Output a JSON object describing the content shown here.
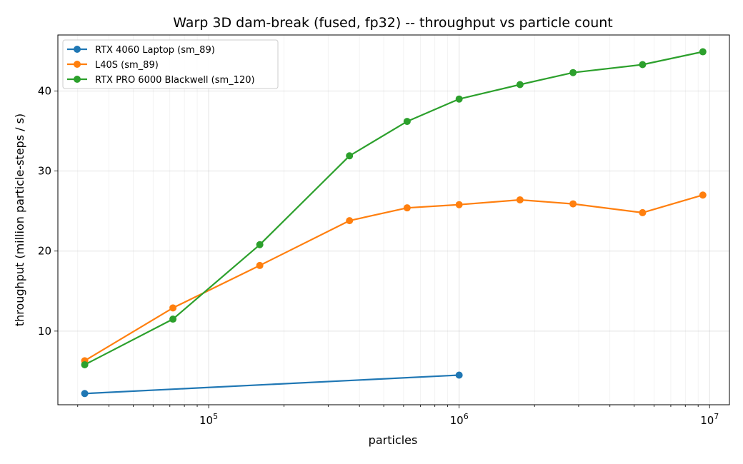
{
  "chart_data": {
    "type": "line",
    "title": "Warp 3D dam-break (fused, fp32) -- throughput vs particle count",
    "xlabel": "particles",
    "ylabel": "throughput (million particle-steps / s)",
    "xscale": "log",
    "xlim": [
      25000,
      12000000
    ],
    "ylim": [
      0.8,
      47.0
    ],
    "grid": true,
    "legend_position": "upper left",
    "x_ticks": [
      {
        "value": 100000,
        "base": "10",
        "exp": "5"
      },
      {
        "value": 1000000,
        "base": "10",
        "exp": "6"
      },
      {
        "value": 10000000,
        "base": "10",
        "exp": "7"
      }
    ],
    "y_ticks": [
      10,
      20,
      30,
      40
    ],
    "series": [
      {
        "name": "RTX 4060 Laptop (sm_89)",
        "color": "#1f77b4",
        "x": [
          32000,
          1000000
        ],
        "y": [
          2.2,
          4.5
        ]
      },
      {
        "name": "L40S (sm_89)",
        "color": "#ff7f0e",
        "x": [
          32000,
          72000,
          160000,
          365000,
          620000,
          1000000,
          1750000,
          2850000,
          5400000,
          9400000
        ],
        "y": [
          6.3,
          12.9,
          18.2,
          23.8,
          25.4,
          25.8,
          26.4,
          25.9,
          24.8,
          27.0
        ]
      },
      {
        "name": "RTX PRO 6000 Blackwell (sm_120)",
        "color": "#2ca02c",
        "x": [
          32000,
          72000,
          160000,
          365000,
          620000,
          1000000,
          1750000,
          2850000,
          5400000,
          9400000
        ],
        "y": [
          5.8,
          11.5,
          20.8,
          31.9,
          36.2,
          39.0,
          40.8,
          42.3,
          43.3,
          44.9
        ]
      }
    ]
  }
}
